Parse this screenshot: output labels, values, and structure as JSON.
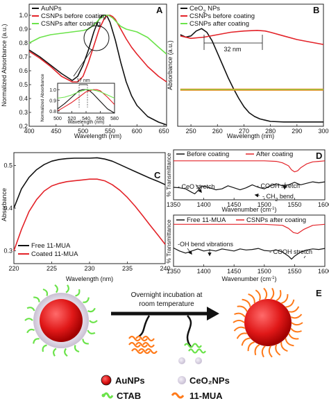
{
  "colors": {
    "black": "#111111",
    "red": "#e32228",
    "green": "#6be34a",
    "orange": "#ff7a1a",
    "ball": "#e01818"
  },
  "chart_data": [
    {
      "id": "A",
      "type": "line",
      "panel_label": "A",
      "xlabel": "Wavelength (nm)",
      "ylabel": "Normalized Absorbance (a.u.)",
      "xlim": [
        400,
        655
      ],
      "ylim": [
        0.2,
        1.08
      ],
      "xticks": [
        "400",
        "450",
        "500",
        "550",
        "600",
        "650"
      ],
      "yticks": [
        "0.2",
        "0.3",
        "0.4",
        "0.5",
        "0.6",
        "0.7",
        "0.8",
        "0.9",
        "1.0"
      ],
      "legend_position": "top-left",
      "series": [
        {
          "name": "AuNPs",
          "color": "black",
          "x": [
            400,
            420,
            440,
            460,
            480,
            490,
            500,
            510,
            520,
            528,
            535,
            540,
            545,
            550,
            560,
            570,
            580,
            590,
            600,
            620,
            640,
            655
          ],
          "y": [
            0.75,
            0.7,
            0.64,
            0.58,
            0.53,
            0.56,
            0.64,
            0.75,
            0.88,
            0.96,
            1.0,
            1.0,
            0.99,
            0.95,
            0.82,
            0.66,
            0.52,
            0.42,
            0.35,
            0.27,
            0.23,
            0.21
          ]
        },
        {
          "name": "CSNPs before coating",
          "color": "red",
          "x": [
            400,
            420,
            440,
            460,
            480,
            490,
            500,
            510,
            520,
            530,
            540,
            545,
            550,
            555,
            560,
            570,
            580,
            590,
            600,
            620,
            640,
            655
          ],
          "y": [
            0.74,
            0.69,
            0.63,
            0.56,
            0.52,
            0.52,
            0.56,
            0.66,
            0.78,
            0.9,
            0.98,
            1.0,
            1.0,
            0.99,
            0.97,
            0.9,
            0.83,
            0.77,
            0.72,
            0.63,
            0.56,
            0.52
          ]
        },
        {
          "name": "CSNPs after coating",
          "color": "green",
          "x": [
            400,
            420,
            440,
            460,
            480,
            500,
            510,
            520,
            530,
            540,
            547,
            555,
            560,
            570,
            580,
            600,
            620,
            640,
            655
          ],
          "y": [
            0.8,
            0.84,
            0.86,
            0.87,
            0.88,
            0.89,
            0.9,
            0.93,
            0.97,
            1.0,
            1.0,
            0.98,
            0.96,
            0.92,
            0.9,
            0.88,
            0.84,
            0.77,
            0.72
          ]
        }
      ],
      "inset": {
        "ylabel": "Normalized Absorbance",
        "xlabel": "Wavelength (nm)",
        "xticks": [
          "500",
          "520",
          "540",
          "560",
          "580"
        ],
        "yticks": [
          "0.8",
          "0.9",
          "1.0"
        ],
        "xlim": [
          500,
          580
        ],
        "ylim": [
          0.78,
          1.06
        ],
        "annotation": "17 nm",
        "series": [
          {
            "color": "black",
            "x": [
              500,
              510,
              520,
              530,
              535,
              540,
              545,
              550,
              560,
              570,
              580
            ],
            "y": [
              0.82,
              0.87,
              0.93,
              0.99,
              1.0,
              1.0,
              0.99,
              0.96,
              0.89,
              0.82,
              0.78
            ]
          },
          {
            "color": "red",
            "x": [
              500,
              510,
              520,
              530,
              540,
              550,
              555,
              560,
              570,
              580
            ],
            "y": [
              0.8,
              0.84,
              0.88,
              0.93,
              0.98,
              1.0,
              1.0,
              0.99,
              0.93,
              0.86
            ]
          },
          {
            "color": "green",
            "x": [
              500,
              510,
              520,
              530,
              540,
              547,
              555,
              560,
              570,
              580
            ],
            "y": [
              0.92,
              0.93,
              0.95,
              0.98,
              1.0,
              1.0,
              0.99,
              0.98,
              0.95,
              0.92
            ]
          }
        ]
      }
    },
    {
      "id": "B",
      "type": "line",
      "panel_label": "B",
      "xlabel": "Wavelength (nm)",
      "ylabel": "Absorbance (a.u.)",
      "xlim": [
        245,
        300
      ],
      "ylim": [
        0,
        1
      ],
      "xticks": [
        "250",
        "260",
        "270",
        "280",
        "290",
        "300"
      ],
      "yticks": [],
      "legend_position": "top-left",
      "annotation": "32 nm",
      "series": [
        {
          "name": "CeO2 NPs",
          "color": "black",
          "x": [
            246,
            248,
            250,
            252,
            254,
            256,
            258,
            260,
            262,
            264,
            266,
            268,
            270,
            272,
            274,
            276,
            278,
            280,
            285,
            290,
            295,
            300
          ],
          "y": [
            0.75,
            0.73,
            0.74,
            0.78,
            0.8,
            0.77,
            0.7,
            0.6,
            0.5,
            0.4,
            0.31,
            0.23,
            0.16,
            0.11,
            0.08,
            0.06,
            0.05,
            0.04,
            0.035,
            0.035,
            0.035,
            0.035
          ]
        },
        {
          "name": "CSNPs before coating",
          "color": "red",
          "x": [
            246,
            250,
            255,
            260,
            265,
            270,
            275,
            278,
            280,
            285,
            290,
            295,
            300
          ],
          "y": [
            0.74,
            0.72,
            0.73,
            0.75,
            0.77,
            0.78,
            0.785,
            0.78,
            0.77,
            0.74,
            0.71,
            0.69,
            0.67
          ]
        },
        {
          "name": "CSNPs after coating",
          "color": "green",
          "x": [
            246,
            250,
            260,
            270,
            280,
            290,
            300
          ],
          "y": [
            0.3,
            0.3,
            0.3,
            0.3,
            0.3,
            0.3,
            0.3
          ]
        },
        {
          "name": "",
          "color": "orange",
          "x": [
            246,
            250,
            260,
            270,
            280,
            290,
            300
          ],
          "y": [
            0.3,
            0.3,
            0.3,
            0.3,
            0.3,
            0.3,
            0.3
          ]
        }
      ]
    },
    {
      "id": "C",
      "type": "line",
      "panel_label": "C",
      "xlabel": "Wavelength (nm)",
      "ylabel": "Absorbance",
      "xlim": [
        220,
        240
      ],
      "ylim": [
        0.27,
        0.53
      ],
      "xticks": [
        "220",
        "225",
        "230",
        "235",
        "240"
      ],
      "yticks": [
        "0.3",
        "0.4",
        "0.5"
      ],
      "legend_position": "bottom-left",
      "series": [
        {
          "name": "Free 11-MUA",
          "color": "black",
          "x": [
            220,
            221,
            222,
            223,
            224,
            225,
            226,
            227,
            228,
            229,
            230,
            231,
            232,
            233,
            234,
            235,
            236,
            237,
            238,
            239,
            240
          ],
          "y": [
            0.4,
            0.445,
            0.472,
            0.49,
            0.502,
            0.51,
            0.514,
            0.516,
            0.517,
            0.517,
            0.517,
            0.518,
            0.515,
            0.51,
            0.502,
            0.494,
            0.486,
            0.478,
            0.47,
            0.463,
            0.455
          ]
        },
        {
          "name": "Coated 11-MUA",
          "color": "red",
          "x": [
            220,
            221,
            222,
            223,
            224,
            225,
            226,
            227,
            228,
            229,
            230,
            231,
            232,
            233,
            234,
            235,
            236,
            237,
            238,
            239,
            240
          ],
          "y": [
            0.3,
            0.35,
            0.392,
            0.42,
            0.44,
            0.452,
            0.458,
            0.462,
            0.464,
            0.466,
            0.468,
            0.468,
            0.464,
            0.455,
            0.442,
            0.425,
            0.405,
            0.383,
            0.36,
            0.338,
            0.315
          ]
        }
      ]
    },
    {
      "id": "D1",
      "type": "line",
      "panel_label": "D",
      "xlabel": "Wavenumber (cm⁻¹)",
      "ylabel": "% Transmittance",
      "xlim": [
        1350,
        1600
      ],
      "ylim": [
        0,
        1
      ],
      "xticks": [
        "1350",
        "1400",
        "1450",
        "1500",
        "1550",
        "1600"
      ],
      "legend_position": "top",
      "annotations": [
        "- CeO stretch",
        "- COOH stretch",
        "- CH₂ bend"
      ],
      "series": [
        {
          "name": "Before coating",
          "color": "black",
          "x": [
            1350,
            1360,
            1370,
            1380,
            1385,
            1390,
            1395,
            1400,
            1410,
            1420,
            1430,
            1440,
            1450,
            1460,
            1470,
            1480,
            1490,
            1500,
            1510,
            1520,
            1530,
            1540,
            1550,
            1560,
            1570,
            1580,
            1590,
            1600
          ],
          "y": [
            0.25,
            0.24,
            0.22,
            0.15,
            0.12,
            0.18,
            0.26,
            0.27,
            0.24,
            0.2,
            0.22,
            0.28,
            0.24,
            0.2,
            0.24,
            0.3,
            0.25,
            0.22,
            0.28,
            0.32,
            0.28,
            0.3,
            0.35,
            0.3,
            0.33,
            0.36,
            0.34,
            0.36
          ]
        },
        {
          "name": "After coating",
          "color": "red",
          "x": [
            1350,
            1400,
            1450,
            1500,
            1520,
            1530,
            1540,
            1545,
            1550,
            1555,
            1560,
            1570,
            1580,
            1590,
            1600
          ],
          "y": [
            0.78,
            0.78,
            0.78,
            0.78,
            0.77,
            0.74,
            0.68,
            0.6,
            0.56,
            0.58,
            0.64,
            0.72,
            0.76,
            0.77,
            0.78
          ]
        }
      ]
    },
    {
      "id": "D2",
      "type": "line",
      "xlabel": "Wavenumber (cm⁻¹)",
      "ylabel": "% Transmittance",
      "xlim": [
        1350,
        1600
      ],
      "ylim": [
        0,
        1
      ],
      "xticks": [
        "1350",
        "1400",
        "1450",
        "1500",
        "1550",
        "1600"
      ],
      "legend_position": "top",
      "annotations": [
        "-OH bend vibrations",
        "- COOH stretch"
      ],
      "series": [
        {
          "name": "Free 11-MUA",
          "color": "black",
          "x": [
            1350,
            1360,
            1370,
            1380,
            1390,
            1400,
            1410,
            1420,
            1430,
            1440,
            1450,
            1460,
            1470,
            1480,
            1490,
            1500,
            1510,
            1520,
            1530,
            1540,
            1545,
            1550,
            1560,
            1570,
            1580,
            1590,
            1600
          ],
          "y": [
            0.36,
            0.3,
            0.26,
            0.3,
            0.34,
            0.3,
            0.32,
            0.3,
            0.34,
            0.32,
            0.3,
            0.34,
            0.32,
            0.33,
            0.35,
            0.31,
            0.3,
            0.32,
            0.28,
            0.2,
            0.14,
            0.2,
            0.28,
            0.32,
            0.34,
            0.33,
            0.35
          ]
        },
        {
          "name": "CSNPs after coating",
          "color": "red",
          "x": [
            1350,
            1400,
            1450,
            1500,
            1530,
            1540,
            1548,
            1555,
            1565,
            1580,
            1600
          ],
          "y": [
            0.82,
            0.82,
            0.82,
            0.82,
            0.8,
            0.74,
            0.66,
            0.64,
            0.72,
            0.8,
            0.82
          ]
        }
      ]
    }
  ],
  "panelE": {
    "label": "E",
    "arrow_text_line1": "Overnight incubation at",
    "arrow_text_line2": "room temperature"
  },
  "legend": {
    "aunps": "AuNPs",
    "ceo2": "CeO₂NPs",
    "ctab": "CTAB",
    "mua": "11-MUA"
  }
}
